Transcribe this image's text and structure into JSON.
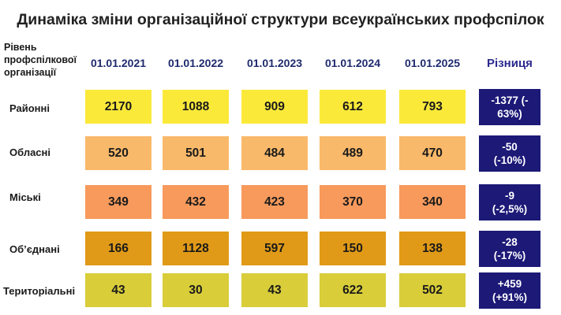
{
  "chart_data": {
    "type": "table",
    "title": "Динаміка зміни організаційної структури всеукраїнських профспілок",
    "corner_label": "Рівень профспілкової організації",
    "columns": [
      "01.01.2021",
      "01.01.2022",
      "01.01.2023",
      "01.01.2024",
      "01.01.2025"
    ],
    "diff_header": "Різниця",
    "rows": [
      {
        "label": "Районні",
        "color": "#fbe93a",
        "values": [
          2170,
          1088,
          909,
          612,
          793
        ],
        "diff": "-1377 (-\n63%)"
      },
      {
        "label": "Обласні",
        "color": "#f9b96a",
        "values": [
          520,
          501,
          484,
          489,
          470
        ],
        "diff": "-50\n(-10%)"
      },
      {
        "label": "Міські",
        "color": "#f79a5c",
        "values": [
          349,
          432,
          423,
          370,
          340
        ],
        "diff": "-9\n(-2,5%)"
      },
      {
        "label": "Об’єднані",
        "color": "#e09a17",
        "values": [
          166,
          1128,
          597,
          150,
          138
        ],
        "diff": "-28\n(-17%)"
      },
      {
        "label": "Територіальні",
        "color": "#d9cd3a",
        "values": [
          43,
          30,
          43,
          622,
          502
        ],
        "diff": "+459\n(+91%)"
      }
    ]
  }
}
